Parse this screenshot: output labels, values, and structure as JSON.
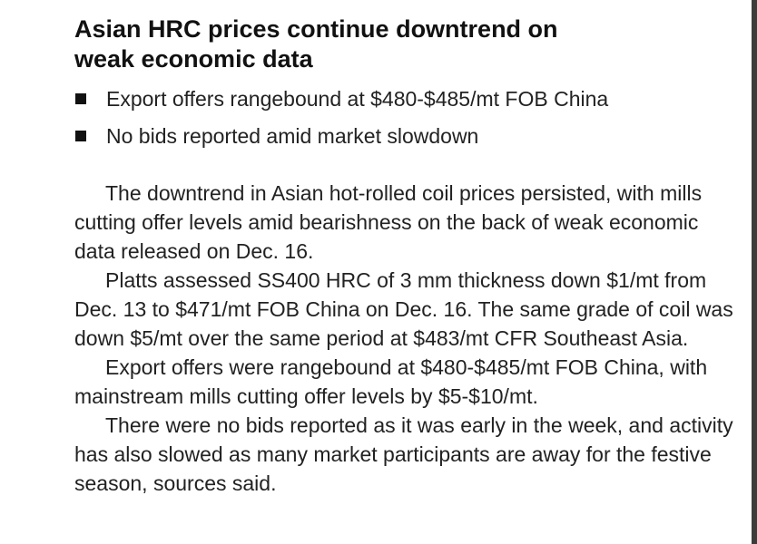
{
  "article": {
    "headline": "Asian HRC prices continue downtrend on weak economic data",
    "bullets": [
      "Export offers rangebound at $480-$485/mt FOB China",
      "No bids reported amid market slowdown"
    ],
    "paragraphs": [
      "The downtrend in Asian hot-rolled coil prices persisted, with mills cutting offer levels amid bearishness on the back of weak economic data released on Dec. 16.",
      "Platts assessed SS400 HRC of 3 mm thickness down $1/mt from Dec. 13 to $471/mt FOB China on Dec. 16. The same grade of coil was down $5/mt over the same period at $483/mt CFR Southeast Asia.",
      "Export offers were rangebound at $480-$485/mt FOB China, with mainstream mills cutting offer levels by $5-$10/mt.",
      "There were no bids reported as it was early in the week, and activity has also slowed as many market participants are away for the festive season, sources said."
    ]
  }
}
